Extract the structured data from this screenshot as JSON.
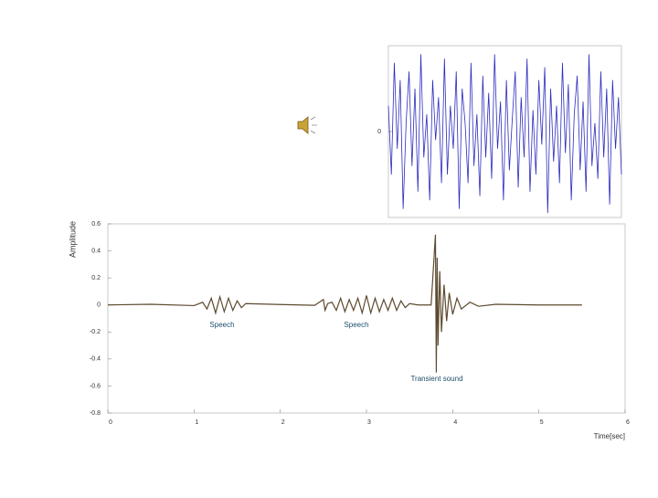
{
  "chart_data": [
    {
      "type": "line",
      "color": "#2b2bbf",
      "values": [
        0.3,
        -0.5,
        0.8,
        -0.2,
        0.6,
        -0.9,
        0.1,
        0.7,
        -0.4,
        0.5,
        -0.7,
        0.9,
        -0.3,
        0.2,
        -0.8,
        0.6,
        -0.1,
        0.4,
        -0.6,
        0.85,
        -0.5,
        0.3,
        -0.2,
        0.7,
        -0.9,
        0.5,
        0.1,
        -0.6,
        0.8,
        -0.4,
        0.2,
        -0.75,
        0.65,
        -0.3,
        0.45,
        -0.55,
        0.9,
        -0.2,
        0.35,
        -0.8,
        0.6,
        -0.45,
        0.15,
        0.7,
        -0.65,
        0.4,
        -0.3,
        0.85,
        -0.7,
        0.25,
        -0.5,
        0.6,
        -0.15,
        0.75,
        -0.95,
        0.5,
        -0.35,
        0.3,
        -0.6,
        0.8,
        -0.25,
        0.55,
        -0.8,
        0.2,
        0.65,
        -0.45,
        0.35,
        -0.7,
        0.9,
        -0.4,
        0.1,
        -0.55,
        0.7,
        -0.3,
        0.5,
        -0.85,
        0.6,
        -0.2,
        0.4,
        -0.5
      ],
      "ylim": [
        -1,
        1
      ],
      "yticks": [
        0
      ]
    },
    {
      "type": "line",
      "color": "#5c4a30",
      "x": [
        0,
        0.5,
        1.0,
        1.1,
        1.15,
        1.2,
        1.25,
        1.3,
        1.35,
        1.4,
        1.45,
        1.5,
        1.55,
        1.6,
        2.0,
        2.4,
        2.5,
        2.52,
        2.55,
        2.6,
        2.65,
        2.7,
        2.75,
        2.8,
        2.85,
        2.9,
        2.95,
        3.0,
        3.05,
        3.1,
        3.15,
        3.2,
        3.25,
        3.3,
        3.35,
        3.4,
        3.45,
        3.5,
        3.6,
        3.75,
        3.8,
        3.81,
        3.82,
        3.83,
        3.85,
        3.87,
        3.9,
        3.93,
        3.96,
        4.0,
        4.05,
        4.1,
        4.2,
        4.3,
        4.5,
        5.0,
        5.5
      ],
      "values": [
        0,
        0.005,
        -0.005,
        0.02,
        -0.03,
        0.05,
        -0.06,
        0.06,
        -0.05,
        0.05,
        -0.04,
        0.03,
        -0.02,
        0.01,
        0.003,
        -0.003,
        0.04,
        -0.04,
        0.01,
        0.02,
        -0.04,
        0.05,
        -0.05,
        0.04,
        -0.04,
        0.05,
        -0.06,
        0.07,
        -0.06,
        0.05,
        -0.05,
        0.04,
        -0.04,
        0.05,
        -0.04,
        0.03,
        -0.02,
        0.01,
        0,
        0,
        0.52,
        -0.5,
        0.35,
        -0.3,
        0.25,
        -0.2,
        0.15,
        -0.12,
        0.09,
        -0.07,
        0.05,
        -0.03,
        0.02,
        -0.01,
        0.005,
        0,
        0
      ],
      "xlim": [
        0,
        6
      ],
      "xticks": [
        0,
        1,
        2,
        3,
        4,
        5,
        6
      ],
      "ylim": [
        -0.8,
        0.6
      ],
      "yticks": [
        0.6,
        0.4,
        0.2,
        0,
        -0.2,
        -0.4,
        -0.6,
        -0.8
      ],
      "y_label": "Amplitude",
      "x_label": "Time[sec]",
      "annotations": [
        "Speech",
        "Speech",
        "Transient sound"
      ]
    }
  ]
}
